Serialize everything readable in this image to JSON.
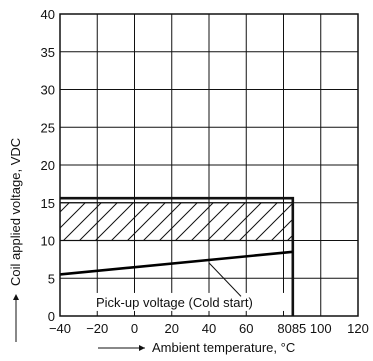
{
  "chart_data": {
    "type": "line",
    "xlabel": "Ambient temperature, °C",
    "ylabel": "Coil applied voltage, VDC",
    "xlim": [
      -40,
      120
    ],
    "ylim": [
      0,
      40
    ],
    "grid": true,
    "xticks": [
      {
        "value": -40,
        "label": "−40"
      },
      {
        "value": -20,
        "label": "−20"
      },
      {
        "value": 0,
        "label": "0"
      },
      {
        "value": 20,
        "label": "20"
      },
      {
        "value": 40,
        "label": "40"
      },
      {
        "value": 60,
        "label": "60"
      },
      {
        "value": 80,
        "label": "80"
      },
      {
        "value": 85,
        "label": "85"
      },
      {
        "value": 100,
        "label": "100"
      },
      {
        "value": 120,
        "label": "120"
      }
    ],
    "yticks": [
      {
        "value": 0,
        "label": "0"
      },
      {
        "value": 5,
        "label": "5"
      },
      {
        "value": 10,
        "label": "10"
      },
      {
        "value": 15,
        "label": "15"
      },
      {
        "value": 20,
        "label": "20"
      },
      {
        "value": 25,
        "label": "25"
      },
      {
        "value": 30,
        "label": "30"
      },
      {
        "value": 35,
        "label": "35"
      },
      {
        "value": 40,
        "label": "40"
      }
    ],
    "series": [
      {
        "x": [
          -40,
          85
        ],
        "y": [
          5.5,
          8.5
        ],
        "color": "#000000"
      }
    ],
    "regions": [
      {
        "kind": "hatched",
        "x": [
          -40,
          85
        ],
        "y": [
          10,
          15
        ]
      },
      {
        "kind": "boundary",
        "x": [
          -40,
          85
        ],
        "y": [
          0,
          15.6
        ]
      }
    ],
    "annotations": [
      {
        "text": "Pick-up voltage (Cold start)",
        "points_to": {
          "x": 40,
          "y": 7.3
        }
      }
    ]
  }
}
